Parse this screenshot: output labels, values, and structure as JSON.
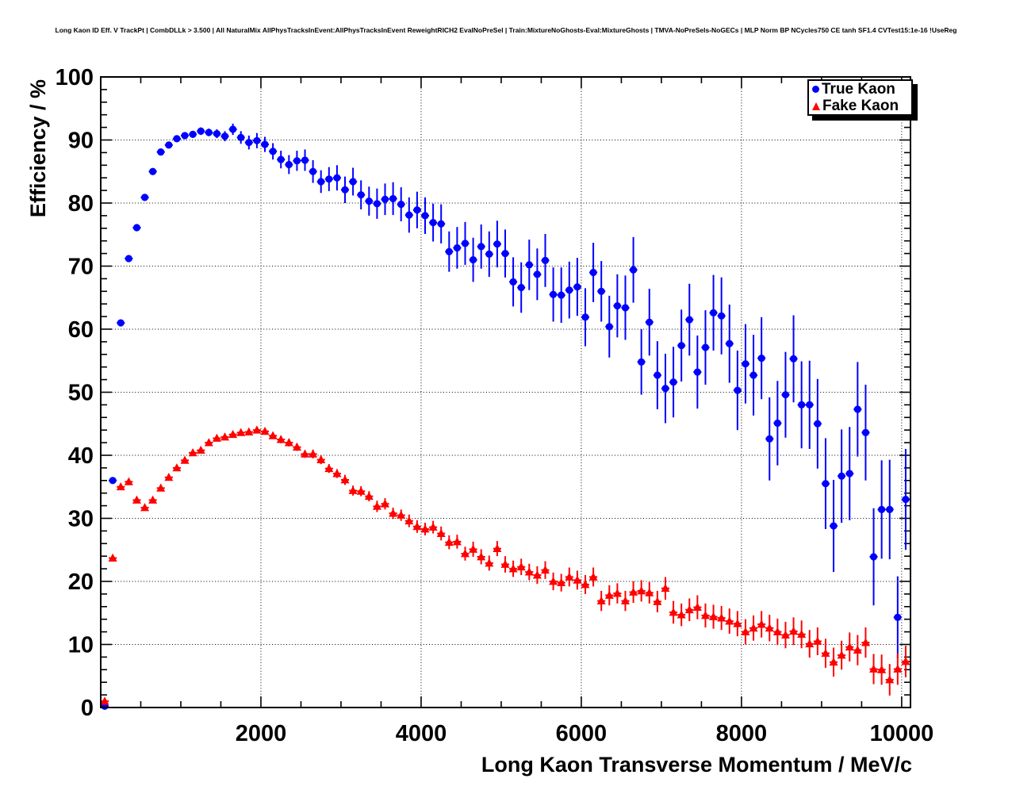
{
  "chart_data": {
    "type": "scatter",
    "title": "Long Kaon ID Eff. V TrackPt | CombDLLk > 3.500 | All NaturalMix AllPhysTracksInEvent:AllPhysTracksInEvent ReweightRICH2 EvalNoPreSel | Train:MixtureNoGhosts-Eval:MixtureGhosts | TMVA-NoPreSels-NoGECs | MLP Norm BP NCycles750 CE tanh SF1.4 CVTest15:1e-16 !UseReg",
    "xlabel": "Long Kaon Transverse Momentum / MeV/c",
    "ylabel": "Efficiency / %",
    "xlim": [
      0,
      10110
    ],
    "ylim": [
      0,
      100
    ],
    "x_major_ticks": [
      2000,
      4000,
      6000,
      8000,
      10000
    ],
    "x_minor_step": 500,
    "y_major_ticks": [
      0,
      10,
      20,
      30,
      40,
      50,
      60,
      70,
      80,
      90,
      100
    ],
    "y_minor_step": 2,
    "grid": {
      "style": "dotted",
      "color": "#000000",
      "on_x_majors": true,
      "on_y_majors": true
    },
    "x_bin_halfwidth": 50,
    "axis_color": "#000000",
    "background_color": "#ffffff",
    "legend": {
      "position": "top-right",
      "entries": [
        {
          "label": "True Kaon",
          "marker": "circle",
          "color": "#0000ff"
        },
        {
          "label": "Fake Kaon",
          "marker": "triangle-up",
          "color": "#ff0000"
        }
      ]
    },
    "series": [
      {
        "name": "True Kaon",
        "marker": "circle",
        "color": "#0000ff",
        "points": [
          [
            50,
            0.2,
            0.3
          ],
          [
            150,
            36,
            0.5
          ],
          [
            250,
            61,
            0.5
          ],
          [
            350,
            71.2,
            0.5
          ],
          [
            450,
            76.1,
            0.5
          ],
          [
            550,
            80.9,
            0.5
          ],
          [
            650,
            85,
            0.5
          ],
          [
            750,
            88.1,
            0.5
          ],
          [
            850,
            89.2,
            0.5
          ],
          [
            950,
            90.2,
            0.5
          ],
          [
            1050,
            90.7,
            0.5
          ],
          [
            1150,
            90.9,
            0.5
          ],
          [
            1250,
            91.4,
            0.6
          ],
          [
            1350,
            91.2,
            0.6
          ],
          [
            1450,
            91,
            0.7
          ],
          [
            1550,
            90.6,
            0.8
          ],
          [
            1650,
            91.7,
            0.9
          ],
          [
            1750,
            90.4,
            1
          ],
          [
            1850,
            89.6,
            1.1
          ],
          [
            1950,
            89.9,
            1.2
          ],
          [
            2050,
            89.3,
            1.2
          ],
          [
            2150,
            88.2,
            1.3
          ],
          [
            2250,
            86.9,
            1.4
          ],
          [
            2350,
            86.1,
            1.5
          ],
          [
            2450,
            86.7,
            1.6
          ],
          [
            2550,
            86.8,
            1.7
          ],
          [
            2650,
            85,
            1.8
          ],
          [
            2750,
            83.4,
            1.8
          ],
          [
            2850,
            83.8,
            1.9
          ],
          [
            2950,
            84,
            2
          ],
          [
            3050,
            82.1,
            2.1
          ],
          [
            3150,
            83.4,
            2.2
          ],
          [
            3250,
            81.3,
            2.3
          ],
          [
            3350,
            80.3,
            2.3
          ],
          [
            3450,
            79.9,
            2.4
          ],
          [
            3550,
            80.6,
            2.5
          ],
          [
            3650,
            80.7,
            2.6
          ],
          [
            3750,
            79.8,
            2.7
          ],
          [
            3850,
            78.1,
            2.8
          ],
          [
            3950,
            78.9,
            2.9
          ],
          [
            4050,
            78,
            2.9
          ],
          [
            4150,
            76.9,
            3
          ],
          [
            4250,
            76.7,
            3.1
          ],
          [
            4350,
            72.3,
            3.2
          ],
          [
            4450,
            72.9,
            3.3
          ],
          [
            4550,
            73.6,
            3.4
          ],
          [
            4650,
            71,
            3.5
          ],
          [
            4750,
            73.1,
            3.5
          ],
          [
            4850,
            71.9,
            3.6
          ],
          [
            4950,
            73.5,
            3.7
          ],
          [
            5050,
            72,
            3.8
          ],
          [
            5150,
            67.5,
            3.9
          ],
          [
            5250,
            66.6,
            4
          ],
          [
            5350,
            70.2,
            4
          ],
          [
            5450,
            68.7,
            4.1
          ],
          [
            5550,
            70.9,
            4.2
          ],
          [
            5650,
            65.5,
            4.3
          ],
          [
            5750,
            65.4,
            4.4
          ],
          [
            5850,
            66.2,
            4.5
          ],
          [
            5950,
            66.7,
            4.6
          ],
          [
            6050,
            61.9,
            4.6
          ],
          [
            6150,
            69,
            4.7
          ],
          [
            6250,
            66,
            4.8
          ],
          [
            6350,
            60.4,
            4.9
          ],
          [
            6450,
            63.7,
            5
          ],
          [
            6550,
            63.4,
            5.1
          ],
          [
            6650,
            69.4,
            5.2
          ],
          [
            6750,
            54.8,
            5.2
          ],
          [
            6850,
            61.1,
            5.3
          ],
          [
            6950,
            52.7,
            5.4
          ],
          [
            7050,
            50.6,
            5.5
          ],
          [
            7150,
            51.6,
            5.6
          ],
          [
            7250,
            57.4,
            5.7
          ],
          [
            7350,
            61.5,
            5.7
          ],
          [
            7450,
            53.2,
            5.8
          ],
          [
            7550,
            57.1,
            5.9
          ],
          [
            7650,
            62.6,
            6
          ],
          [
            7750,
            62.1,
            6.1
          ],
          [
            7850,
            57.7,
            6.2
          ],
          [
            7950,
            50.3,
            6.3
          ],
          [
            8050,
            54.5,
            6.3
          ],
          [
            8150,
            52.7,
            6.4
          ],
          [
            8250,
            55.4,
            6.5
          ],
          [
            8350,
            42.6,
            6.6
          ],
          [
            8450,
            45.1,
            6.7
          ],
          [
            8550,
            49.6,
            6.8
          ],
          [
            8650,
            55.3,
            6.9
          ],
          [
            8750,
            48,
            6.9
          ],
          [
            8850,
            48,
            7
          ],
          [
            8950,
            45,
            7.1
          ],
          [
            9050,
            35.5,
            7.2
          ],
          [
            9150,
            28.8,
            7.3
          ],
          [
            9250,
            36.7,
            7.4
          ],
          [
            9350,
            37.1,
            7.4
          ],
          [
            9450,
            47.3,
            7.5
          ],
          [
            9550,
            43.6,
            7.6
          ],
          [
            9650,
            23.9,
            7.7
          ],
          [
            9750,
            31.4,
            7.8
          ],
          [
            9850,
            31.4,
            7.9
          ],
          [
            9950,
            14.3,
            6.5
          ],
          [
            10050,
            33,
            8
          ]
        ]
      },
      {
        "name": "Fake Kaon",
        "marker": "triangle-up",
        "color": "#ff0000",
        "points": [
          [
            50,
            1,
            0.3
          ],
          [
            150,
            23.7,
            0.3
          ],
          [
            250,
            35,
            0.3
          ],
          [
            350,
            35.8,
            0.3
          ],
          [
            450,
            32.9,
            0.3
          ],
          [
            550,
            31.7,
            0.3
          ],
          [
            650,
            32.9,
            0.3
          ],
          [
            750,
            34.8,
            0.3
          ],
          [
            850,
            36.5,
            0.3
          ],
          [
            950,
            38,
            0.3
          ],
          [
            1050,
            39.2,
            0.3
          ],
          [
            1150,
            40.4,
            0.3
          ],
          [
            1250,
            40.8,
            0.3
          ],
          [
            1350,
            42,
            0.3
          ],
          [
            1450,
            42.7,
            0.4
          ],
          [
            1550,
            42.9,
            0.4
          ],
          [
            1650,
            43.3,
            0.4
          ],
          [
            1750,
            43.6,
            0.4
          ],
          [
            1850,
            43.7,
            0.5
          ],
          [
            1950,
            44,
            0.5
          ],
          [
            2050,
            43.8,
            0.5
          ],
          [
            2150,
            43.1,
            0.5
          ],
          [
            2250,
            42.5,
            0.6
          ],
          [
            2350,
            42,
            0.6
          ],
          [
            2450,
            41.3,
            0.6
          ],
          [
            2550,
            40.2,
            0.6
          ],
          [
            2650,
            40.2,
            0.7
          ],
          [
            2750,
            39.3,
            0.7
          ],
          [
            2850,
            37.9,
            0.7
          ],
          [
            2950,
            37.1,
            0.7
          ],
          [
            3050,
            36.1,
            0.8
          ],
          [
            3150,
            34.4,
            0.8
          ],
          [
            3250,
            34.3,
            0.8
          ],
          [
            3350,
            33.5,
            0.8
          ],
          [
            3450,
            31.9,
            0.9
          ],
          [
            3550,
            32.3,
            0.9
          ],
          [
            3650,
            30.8,
            0.9
          ],
          [
            3750,
            30.5,
            0.9
          ],
          [
            3850,
            29.6,
            1
          ],
          [
            3950,
            28.7,
            1
          ],
          [
            4050,
            28.3,
            1
          ],
          [
            4150,
            28.6,
            1
          ],
          [
            4250,
            27.6,
            1.1
          ],
          [
            4350,
            26.2,
            1.1
          ],
          [
            4450,
            26.3,
            1.1
          ],
          [
            4550,
            24.4,
            1.1
          ],
          [
            4650,
            25.1,
            1.2
          ],
          [
            4750,
            23.9,
            1.2
          ],
          [
            4850,
            22.9,
            1.2
          ],
          [
            4950,
            25.2,
            1.2
          ],
          [
            5050,
            22.7,
            1.3
          ],
          [
            5150,
            22,
            1.3
          ],
          [
            5250,
            22.3,
            1.3
          ],
          [
            5350,
            21.5,
            1.3
          ],
          [
            5450,
            21,
            1.4
          ],
          [
            5550,
            21.8,
            1.4
          ],
          [
            5650,
            20,
            1.4
          ],
          [
            5750,
            19.8,
            1.4
          ],
          [
            5850,
            20.7,
            1.5
          ],
          [
            5950,
            20.2,
            1.5
          ],
          [
            6050,
            19.5,
            1.5
          ],
          [
            6150,
            20.7,
            1.5
          ],
          [
            6250,
            16.9,
            1.6
          ],
          [
            6350,
            17.8,
            1.6
          ],
          [
            6450,
            18.1,
            1.6
          ],
          [
            6550,
            16.9,
            1.6
          ],
          [
            6650,
            18.3,
            1.7
          ],
          [
            6750,
            18.5,
            1.7
          ],
          [
            6850,
            18.2,
            1.7
          ],
          [
            6950,
            16.8,
            1.7
          ],
          [
            7050,
            18.9,
            1.8
          ],
          [
            7150,
            15.1,
            1.8
          ],
          [
            7250,
            14.7,
            1.8
          ],
          [
            7350,
            15.5,
            1.8
          ],
          [
            7450,
            15.9,
            1.9
          ],
          [
            7550,
            14.6,
            1.9
          ],
          [
            7650,
            14.4,
            1.9
          ],
          [
            7750,
            14.2,
            1.9
          ],
          [
            7850,
            13.7,
            2
          ],
          [
            7950,
            13.3,
            2
          ],
          [
            8050,
            12,
            2
          ],
          [
            8150,
            12.6,
            2
          ],
          [
            8250,
            13.2,
            2.1
          ],
          [
            8350,
            12.6,
            2.1
          ],
          [
            8450,
            12,
            2.1
          ],
          [
            8550,
            11.5,
            2.1
          ],
          [
            8650,
            12.1,
            2.2
          ],
          [
            8750,
            11.6,
            2.2
          ],
          [
            8850,
            10.1,
            2.2
          ],
          [
            8950,
            10.5,
            2.2
          ],
          [
            9050,
            8.6,
            2.3
          ],
          [
            9150,
            7.2,
            2.3
          ],
          [
            9250,
            8.3,
            2.3
          ],
          [
            9350,
            9.6,
            2.3
          ],
          [
            9450,
            9.1,
            2.4
          ],
          [
            9550,
            10.3,
            2.4
          ],
          [
            9650,
            6.1,
            2.4
          ],
          [
            9750,
            6,
            2.4
          ],
          [
            9850,
            4.4,
            2.5
          ],
          [
            9950,
            6.1,
            2.5
          ],
          [
            10050,
            7.3,
            2.5
          ]
        ]
      }
    ]
  }
}
